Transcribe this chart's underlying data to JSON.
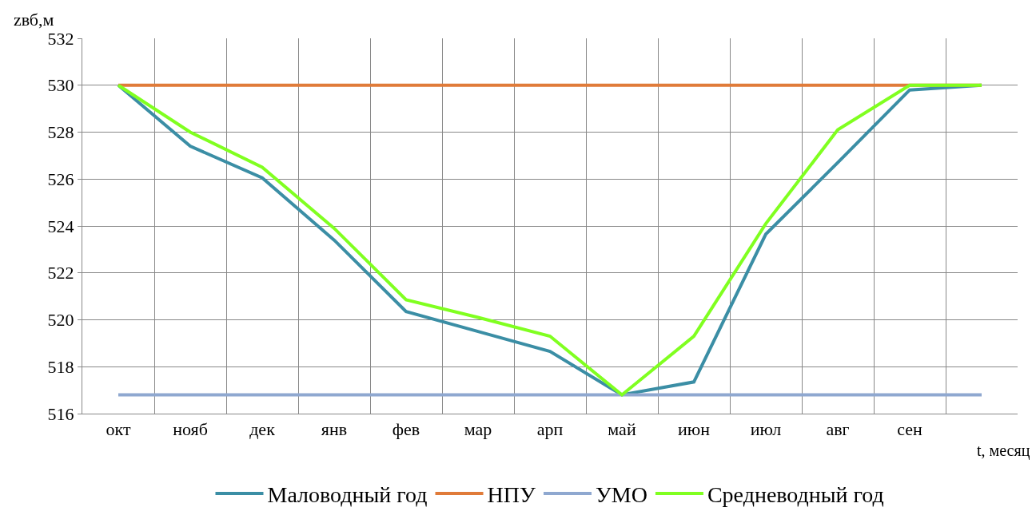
{
  "chart_data": {
    "type": "line",
    "ylabel": "zвб,м",
    "xlabel": "t, месяц",
    "categories": [
      "окт",
      "нояб",
      "дек",
      "янв",
      "фев",
      "мар",
      "арп",
      "май",
      "июн",
      "июл",
      "авг",
      "сен",
      null
    ],
    "series": [
      {
        "name": "Маловодный год",
        "color": "#3b8ea5",
        "values": [
          530,
          527.4,
          526.05,
          523.4,
          520.35,
          519.5,
          518.65,
          516.8,
          517.35,
          523.65,
          526.7,
          529.8,
          530
        ]
      },
      {
        "name": "НПУ",
        "color": "#e07b39",
        "values": [
          530,
          530,
          530,
          530,
          530,
          530,
          530,
          530,
          530,
          530,
          530,
          530,
          530
        ]
      },
      {
        "name": "УМО",
        "color": "#8fa8d0",
        "values": [
          516.8,
          516.8,
          516.8,
          516.8,
          516.8,
          516.8,
          516.8,
          516.8,
          516.8,
          516.8,
          516.8,
          516.8,
          516.8
        ]
      },
      {
        "name": "Средневодный год",
        "color": "#80ff20",
        "values": [
          530,
          528,
          526.5,
          523.9,
          520.85,
          520.1,
          519.3,
          516.8,
          519.3,
          524.1,
          528.1,
          530,
          530
        ]
      }
    ],
    "ylim": [
      516,
      532
    ],
    "yticks": [
      516,
      518,
      520,
      522,
      524,
      526,
      528,
      530,
      532
    ],
    "grid": true,
    "legend": "bottom",
    "marker": "none",
    "line_style": "solid"
  }
}
